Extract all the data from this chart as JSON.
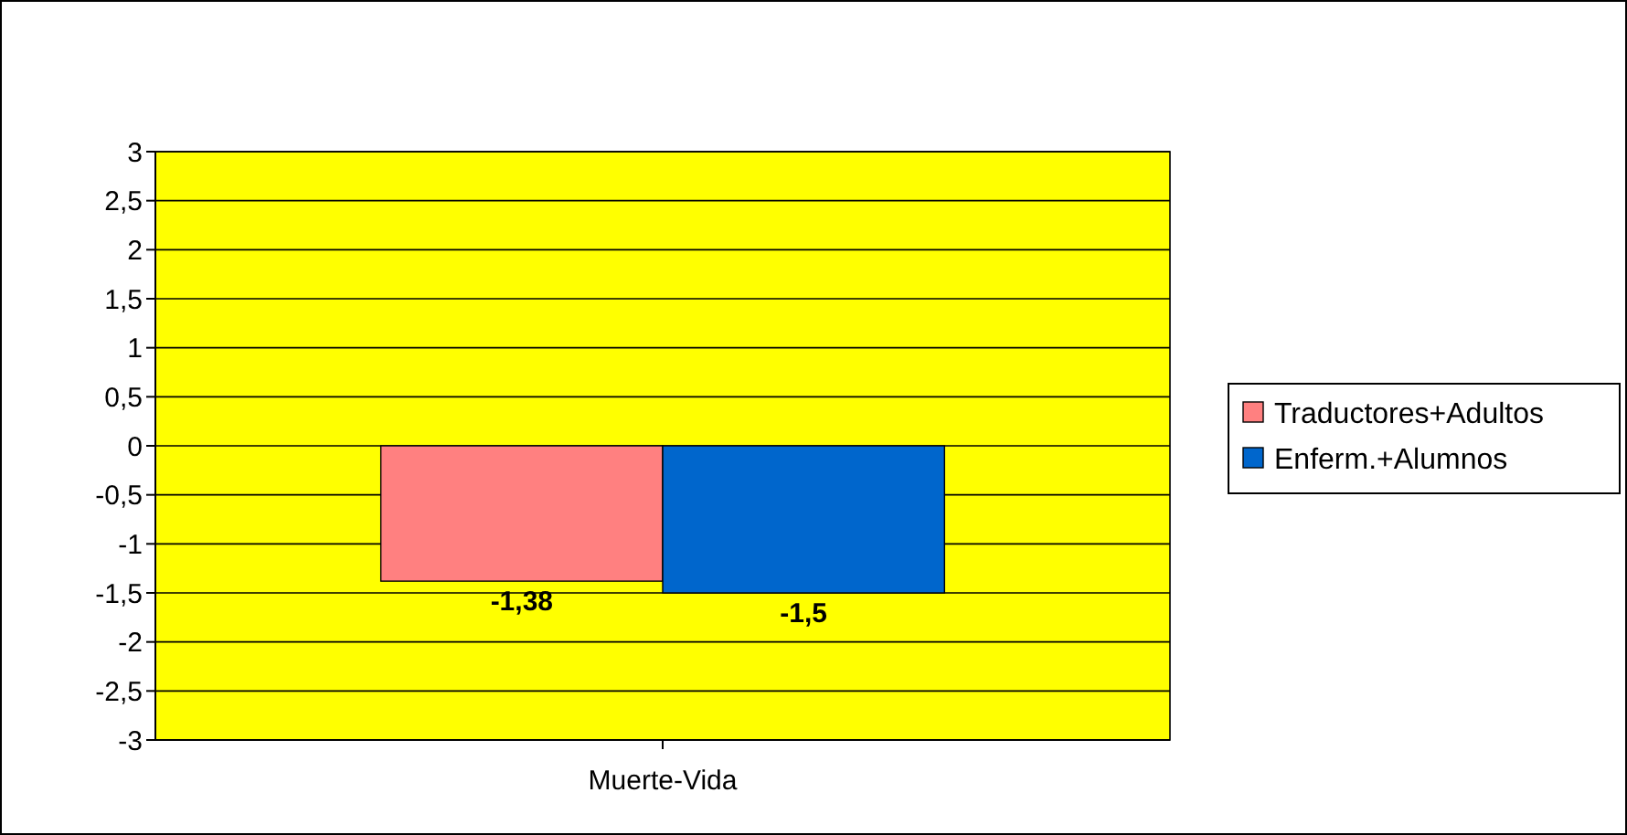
{
  "chart_data": {
    "type": "bar",
    "categories": [
      "Muerte-Vida"
    ],
    "series": [
      {
        "name": "Traductores+Adultos",
        "color": "#ff8080",
        "values": [
          -1.38
        ],
        "value_labels": [
          "-1,38"
        ]
      },
      {
        "name": "Enferm.+Alumnos",
        "color": "#0066cc",
        "values": [
          -1.5
        ],
        "value_labels": [
          "-1,5"
        ]
      }
    ],
    "ylim": [
      -3,
      3
    ],
    "yticks": [
      {
        "value": -3,
        "label": "-3"
      },
      {
        "value": -2.5,
        "label": "-2,5"
      },
      {
        "value": -2,
        "label": "-2"
      },
      {
        "value": -1.5,
        "label": "-1,5"
      },
      {
        "value": -1,
        "label": "-1"
      },
      {
        "value": -0.5,
        "label": "-0,5"
      },
      {
        "value": 0,
        "label": "0"
      },
      {
        "value": 0.5,
        "label": "0,5"
      },
      {
        "value": 1,
        "label": "1"
      },
      {
        "value": 1.5,
        "label": "1,5"
      },
      {
        "value": 2,
        "label": "2"
      },
      {
        "value": 2.5,
        "label": "2,5"
      },
      {
        "value": 3,
        "label": "3"
      }
    ],
    "grid": "y",
    "legend": "right"
  }
}
